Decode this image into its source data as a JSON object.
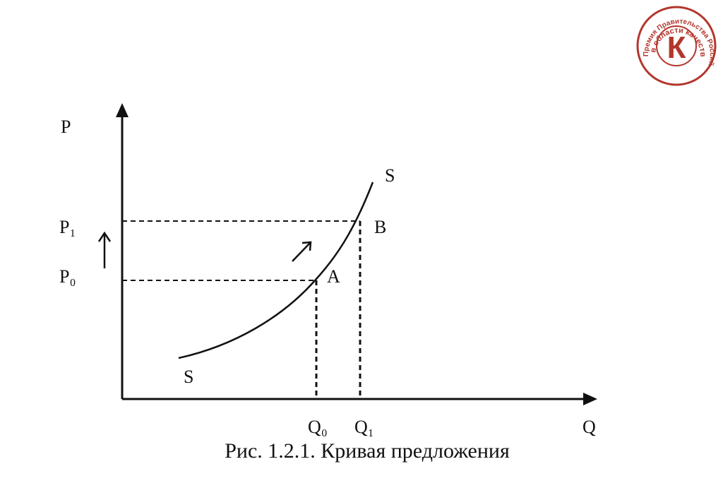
{
  "diagram": {
    "axes": {
      "y_label": "P",
      "x_label": "Q"
    },
    "price_labels": [
      "P₁",
      "P₀"
    ],
    "quantity_labels": [
      "Q₀",
      "Q₁"
    ],
    "curve_labels": [
      "S",
      "S"
    ],
    "point_labels": [
      "A",
      "B"
    ],
    "caption": "Рис. 1.2.1. Кривая предложения"
  },
  "logo": {
    "outer_text": "Премия Правительства Российской Федерации",
    "inner_text": "в области качества",
    "letter": "К"
  }
}
